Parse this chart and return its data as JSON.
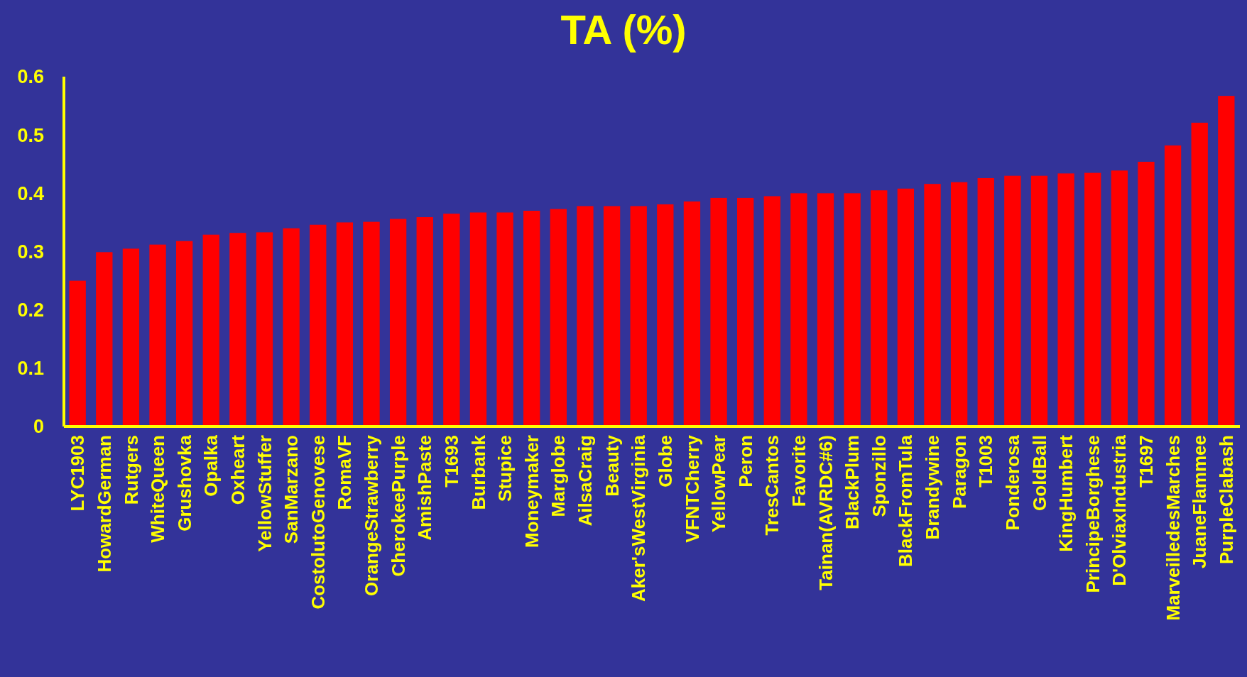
{
  "chart_data": {
    "type": "bar",
    "title": "TA (%)",
    "categories": [
      "LYC1903",
      "HowardGerman",
      "Rutgers",
      "WhiteQueen",
      "Grushovka",
      "Opalka",
      "Oxheart",
      "YellowStuffer",
      "SanMarzano",
      "CostolutoGenovese",
      "RomaVF",
      "OrangeStrawberry",
      "CherokeePurple",
      "AmishPaste",
      "T1693",
      "Burbank",
      "Stupice",
      "Moneymaker",
      "Marglobe",
      "AilsaCraig",
      "Beauty",
      "Aker'sWestVirginia",
      "Globe",
      "VFNTCherry",
      "YellowPear",
      "Peron",
      "TresCantos",
      "Favorite",
      "Tainan(AVRDC#6)",
      "BlackPlum",
      "Sponzillo",
      "BlackFromTula",
      "Brandywine",
      "Paragon",
      "T1003",
      "Ponderosa",
      "GoldBall",
      "KingHumbert",
      "PrincipeBorghese",
      "D'OlviaxIndustria",
      "T1697",
      "MarveilledesMarches",
      "JuaneFlammee",
      "PurpleClabash"
    ],
    "values": [
      0.25,
      0.299,
      0.305,
      0.312,
      0.318,
      0.329,
      0.332,
      0.333,
      0.34,
      0.346,
      0.35,
      0.351,
      0.356,
      0.359,
      0.365,
      0.367,
      0.367,
      0.37,
      0.373,
      0.378,
      0.378,
      0.378,
      0.381,
      0.386,
      0.392,
      0.392,
      0.395,
      0.4,
      0.4,
      0.4,
      0.405,
      0.408,
      0.416,
      0.419,
      0.426,
      0.43,
      0.43,
      0.434,
      0.435,
      0.439,
      0.454,
      0.482,
      0.521,
      0.567
    ],
    "color": "#ff0000",
    "ylim": [
      0,
      0.6
    ],
    "yticks": [
      0,
      0.1,
      0.2,
      0.3,
      0.4,
      0.5,
      0.6
    ],
    "grid": false
  }
}
